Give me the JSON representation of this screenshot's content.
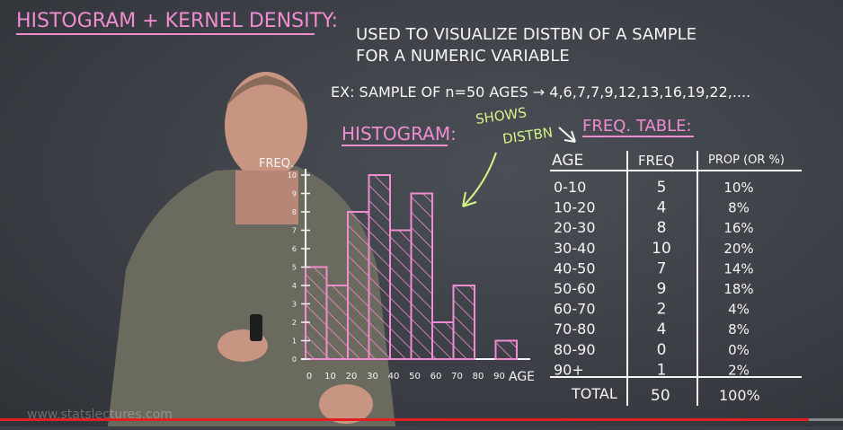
{
  "board": {
    "title": "HISTOGRAM + KERNEL DENSITY:",
    "desc_line1": "USED TO VISUALIZE DISTBN OF A SAMPLE",
    "desc_line2": "FOR A NUMERIC VARIABLE",
    "example": "EX: SAMPLE OF n=50 AGES → 4,6,7,7,9,12,13,16,19,22,....",
    "histogram_label": "HISTOGRAM:",
    "shows_line1": "SHOWS",
    "shows_line2": "DISTBN",
    "freq_table_label": "FREQ. TABLE:",
    "colors": {
      "pink": "#f08cd0",
      "white": "#f4f4f4",
      "lime": "#d8f28a",
      "board": "#3c4046"
    }
  },
  "chart_data": {
    "type": "bar",
    "title": "",
    "ylabel": "FREQ.",
    "xlabel": "AGE",
    "ylim": [
      0,
      10
    ],
    "yticks": [
      "0",
      "1",
      "2",
      "3",
      "4",
      "5",
      "6",
      "7",
      "8",
      "9",
      "10"
    ],
    "xticks": [
      "0",
      "10",
      "20",
      "30",
      "40",
      "50",
      "60",
      "70",
      "80",
      "90"
    ],
    "categories": [
      "0-10",
      "10-20",
      "20-30",
      "30-40",
      "40-50",
      "50-60",
      "60-70",
      "70-80",
      "80-90",
      "90+"
    ],
    "values": [
      5,
      4,
      8,
      10,
      7,
      9,
      2,
      4,
      0,
      1
    ]
  },
  "freq_table": {
    "headers": [
      "AGE",
      "FREQ",
      "PROP (OR %)"
    ],
    "rows": [
      [
        "0-10",
        "5",
        "10%"
      ],
      [
        "10-20",
        "4",
        "8%"
      ],
      [
        "20-30",
        "8",
        "16%"
      ],
      [
        "30-40",
        "10",
        "20%"
      ],
      [
        "40-50",
        "7",
        "14%"
      ],
      [
        "50-60",
        "9",
        "18%"
      ],
      [
        "60-70",
        "2",
        "4%"
      ],
      [
        "70-80",
        "4",
        "8%"
      ],
      [
        "80-90",
        "0",
        "0%"
      ],
      [
        "90+",
        "1",
        "2%"
      ]
    ],
    "total": [
      "TOTAL",
      "50",
      "100%"
    ]
  },
  "video": {
    "watermark": "www.statslectures.com",
    "progress_fraction": 0.96
  }
}
